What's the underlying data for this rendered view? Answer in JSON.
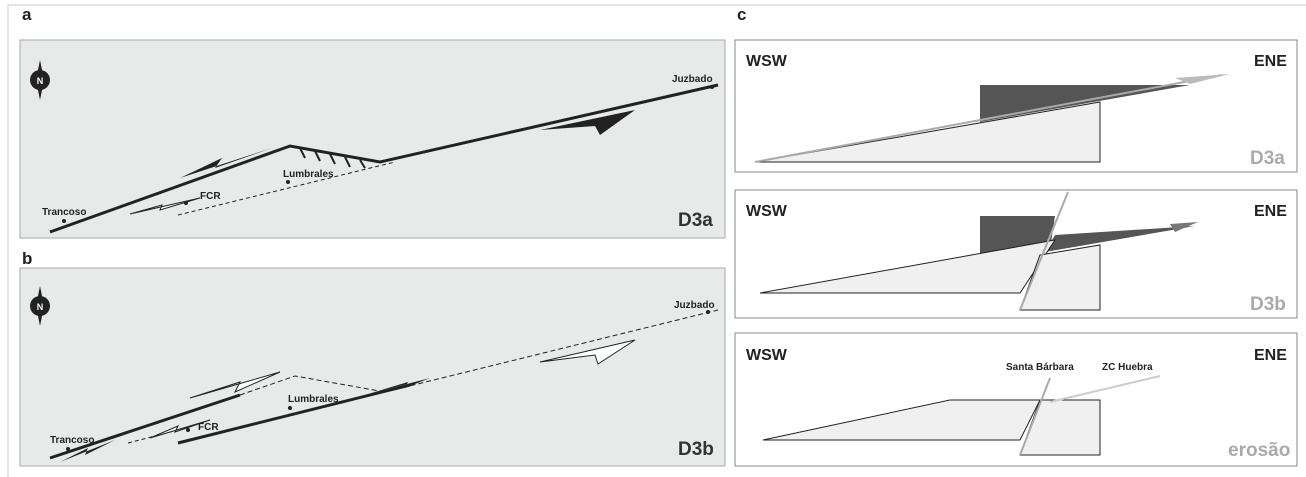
{
  "panels": [
    {
      "letter": "a",
      "north": "N",
      "places": {
        "juzbado": "Juzbado",
        "lumbrales": "Lumbrales",
        "fcr": "FCR",
        "trancoso": "Trancoso"
      },
      "stage": "D3a"
    },
    {
      "letter": "b",
      "north": "N",
      "places": {
        "juzbado": "Juzbado",
        "lumbrales": "Lumbrales",
        "fcr": "FCR",
        "trancoso": "Trancoso"
      },
      "stage": "D3b"
    }
  ],
  "sections_letter": "c",
  "sections": [
    {
      "left": "WSW",
      "right": "ENE",
      "stage": "D3a"
    },
    {
      "left": "WSW",
      "right": "ENE",
      "stage": "D3b"
    },
    {
      "left": "WSW",
      "right": "ENE",
      "stage": "erosão",
      "faults": {
        "west": "Santa Bárbara",
        "east": "ZC Huebra"
      }
    }
  ]
}
